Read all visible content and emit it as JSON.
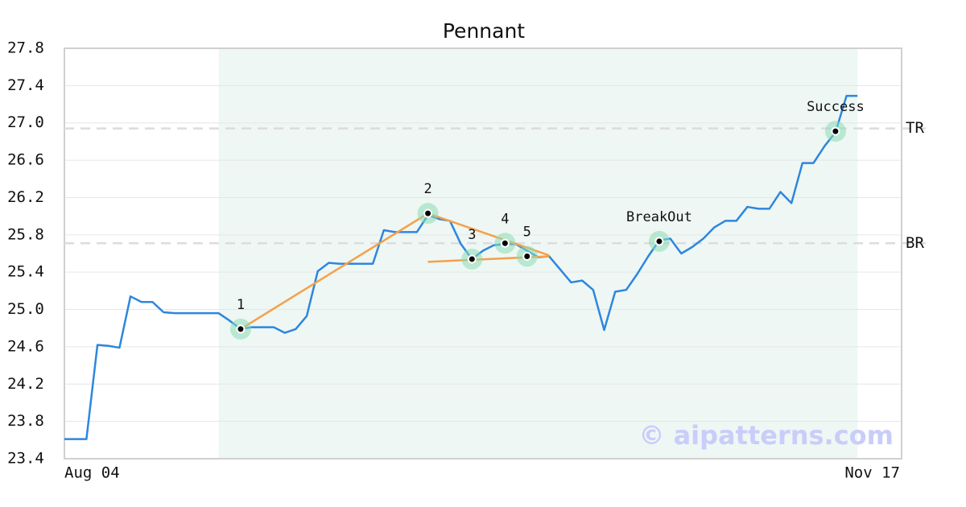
{
  "chart_data": {
    "type": "line",
    "title": "Pennant",
    "categories": [
      "Aug 04",
      null,
      null,
      null,
      null,
      null,
      null,
      null,
      null,
      null,
      null,
      null,
      null,
      null,
      null,
      null,
      null,
      null,
      null,
      null,
      null,
      null,
      null,
      null,
      null,
      null,
      null,
      null,
      null,
      null,
      null,
      null,
      null,
      null,
      null,
      null,
      null,
      null,
      null,
      null,
      null,
      null,
      null,
      null,
      null,
      null,
      null,
      null,
      null,
      null,
      null,
      null,
      null,
      null,
      null,
      null,
      null,
      null,
      null,
      null,
      null,
      null,
      null,
      null,
      null,
      null,
      null,
      null,
      null,
      null,
      null,
      null,
      null,
      null,
      null,
      null,
      "Nov 17"
    ],
    "series": [
      {
        "color": "#2e86de",
        "values": [
          23.61,
          23.61,
          23.61,
          24.62,
          24.61,
          24.59,
          25.14,
          25.08,
          25.08,
          24.97,
          24.96,
          24.96,
          24.96,
          24.96,
          24.96,
          24.88,
          24.79,
          24.81,
          24.81,
          24.81,
          24.75,
          24.79,
          24.93,
          25.41,
          25.5,
          25.49,
          25.49,
          25.49,
          25.49,
          25.85,
          25.83,
          25.83,
          25.83,
          26.01,
          25.97,
          25.95,
          25.7,
          25.54,
          25.63,
          25.69,
          25.7,
          25.7,
          25.63,
          25.56,
          25.57,
          25.43,
          25.29,
          25.31,
          25.21,
          24.78,
          25.19,
          25.21,
          25.38,
          25.57,
          25.74,
          25.76,
          25.6,
          25.67,
          25.76,
          25.88,
          25.95,
          25.95,
          26.1,
          26.08,
          26.08,
          26.26,
          26.14,
          26.57,
          26.57,
          26.75,
          26.9,
          27.29,
          27.29,
          null,
          null,
          null,
          null
        ]
      }
    ],
    "ylim": [
      23.4,
      27.8
    ],
    "yticks": [
      23.4,
      23.8,
      24.2,
      24.6,
      {
        "value": 25,
        "label": "25.0"
      },
      25.4,
      25.8,
      26.2,
      26.6,
      {
        "value": 27,
        "label": "27.0"
      },
      27.4,
      27.8
    ],
    "grid": true,
    "shade": {
      "x": [
        14,
        72
      ],
      "color": "#eef7f3"
    },
    "trendlines": [
      {
        "color": "#f5a04a",
        "x": [
          16,
          33
        ],
        "y": [
          24.79,
          26.03
        ]
      },
      {
        "color": "#f5a04a",
        "x": [
          33,
          44
        ],
        "y": [
          26.03,
          25.58
        ]
      },
      {
        "color": "#f5a04a",
        "x": [
          33,
          44
        ],
        "y": [
          25.51,
          25.57
        ]
      }
    ],
    "points": [
      {
        "label": "1",
        "x": 16,
        "y": 24.79
      },
      {
        "label": "2",
        "x": 33,
        "y": 26.03
      },
      {
        "label": "3",
        "x": 37,
        "y": 25.54
      },
      {
        "label": "4",
        "x": 40,
        "y": 25.71
      },
      {
        "label": "5",
        "x": 42,
        "y": 25.57
      },
      {
        "label": "BreakOut",
        "x": 54,
        "y": 25.73
      },
      {
        "label": "Success",
        "x": 70,
        "y": 26.91
      }
    ],
    "reference_lines": [
      {
        "label": "TR",
        "value": 26.94
      },
      {
        "label": "BR",
        "value": 25.71
      }
    ],
    "watermark": "© aipatterns.com"
  }
}
